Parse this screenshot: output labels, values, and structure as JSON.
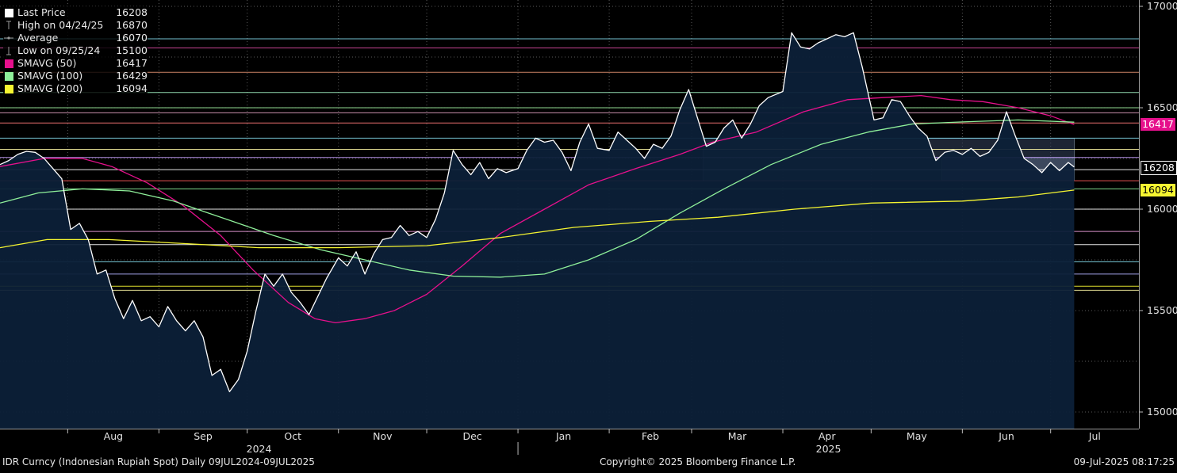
{
  "legend": [
    {
      "label": "Last Price",
      "value": "16208",
      "icon": "white-square",
      "color": "#ffffff"
    },
    {
      "label": "High on 04/24/25",
      "value": "16870",
      "icon": "high-marker-icon",
      "color": "#9a9a9a"
    },
    {
      "label": "Average",
      "value": "16070",
      "icon": "average-line-icon",
      "color": "#9a9a9a"
    },
    {
      "label": "Low on 09/25/24",
      "value": "15100",
      "icon": "low-marker-icon",
      "color": "#9a9a9a"
    },
    {
      "label": "SMAVG (50)",
      "value": "16417",
      "icon": "magenta-square",
      "color": "#e6108c"
    },
    {
      "label": "SMAVG (100)",
      "value": "16429",
      "icon": "green-square",
      "color": "#8ff09a"
    },
    {
      "label": "SMAVG (200)",
      "value": "16094",
      "icon": "yellow-square",
      "color": "#f5f531"
    }
  ],
  "tags": [
    {
      "value": "16417",
      "color": "#e6108c",
      "text_color": "#ffffff",
      "y_value": 16417
    },
    {
      "value": "16208",
      "color": "#000000",
      "text_color": "#ffffff",
      "y_value": 16208
    },
    {
      "value": "16094",
      "color": "#f5f531",
      "text_color": "#000000",
      "y_value": 16094
    }
  ],
  "footer": {
    "left": "IDR Curncy (Indonesian Rupiah Spot)  Daily 09JUL2024-09JUL2025",
    "center": "Copyright© 2025 Bloomberg Finance L.P.",
    "right": "09-Jul-2025 08:17:25"
  },
  "chart_data": {
    "type": "area",
    "ylim": [
      14920,
      17000
    ],
    "y_ticks": [
      17000,
      16500,
      16000,
      15500,
      15000
    ],
    "x_labels": [
      {
        "label": "Aug",
        "date": "2024-08-01"
      },
      {
        "label": "Sep",
        "date": "2024-09-01"
      },
      {
        "label": "Oct",
        "date": "2024-10-01"
      },
      {
        "label": "Nov",
        "date": "2024-11-01"
      },
      {
        "label": "Dec",
        "date": "2024-12-01"
      },
      {
        "label": "Jan",
        "date": "2025-01-01"
      },
      {
        "label": "Feb",
        "date": "2025-02-01"
      },
      {
        "label": "Mar",
        "date": "2025-03-01"
      },
      {
        "label": "Apr",
        "date": "2025-04-01"
      },
      {
        "label": "May",
        "date": "2025-05-01"
      },
      {
        "label": "Jun",
        "date": "2025-06-01"
      },
      {
        "label": "Jul",
        "date": "2025-07-01"
      }
    ],
    "year_labels": [
      {
        "label": "2024"
      },
      {
        "label": "2025"
      }
    ],
    "xlim_dates": [
      "2024-07-09",
      "2025-07-31"
    ],
    "grid": true,
    "legend_position": "top-left",
    "colors": {
      "price": "#ffffff",
      "fill": "#0c2038",
      "sma50": "#e6108c",
      "sma100": "#8ff09a",
      "sma200": "#f5f531"
    },
    "horizontal_lines": [
      {
        "y": 16840,
        "color": "#7fd6e6"
      },
      {
        "y": 16795,
        "color": "#d94aa0"
      },
      {
        "y": 16675,
        "color": "#e09070"
      },
      {
        "y": 16575,
        "color": "#9ff0c0"
      },
      {
        "y": 16500,
        "color": "#9ff0a0"
      },
      {
        "y": 16475,
        "color": "#e0a0c0"
      },
      {
        "y": 16425,
        "color": "#ff7a7a"
      },
      {
        "y": 16350,
        "color": "#7fd6e6"
      },
      {
        "y": 16295,
        "color": "#f5f0a0"
      },
      {
        "y": 16255,
        "color": "#c8a0ff"
      },
      {
        "y": 16195,
        "color": "#ffffff"
      },
      {
        "y": 16140,
        "color": "#ff5a5a"
      },
      {
        "y": 16100,
        "color": "#8ff09a"
      },
      {
        "y": 16000,
        "color": "#ffffff"
      },
      {
        "y": 15890,
        "color": "#f0a0e0"
      },
      {
        "y": 15825,
        "color": "#ffffff"
      },
      {
        "y": 15740,
        "color": "#7fd6e6"
      },
      {
        "y": 15680,
        "color": "#b0b0ff"
      },
      {
        "y": 15620,
        "color": "#f5f531"
      },
      {
        "y": 15600,
        "color": "#f5f0a0"
      }
    ],
    "series": [
      {
        "name": "Last Price",
        "points": [
          [
            "2024-07-09",
            16220
          ],
          [
            "2024-07-12",
            16240
          ],
          [
            "2024-07-15",
            16270
          ],
          [
            "2024-07-18",
            16285
          ],
          [
            "2024-07-21",
            16280
          ],
          [
            "2024-07-24",
            16250
          ],
          [
            "2024-07-27",
            16200
          ],
          [
            "2024-07-30",
            16150
          ],
          [
            "2024-08-02",
            15900
          ],
          [
            "2024-08-05",
            15930
          ],
          [
            "2024-08-08",
            15850
          ],
          [
            "2024-08-11",
            15680
          ],
          [
            "2024-08-14",
            15700
          ],
          [
            "2024-08-17",
            15560
          ],
          [
            "2024-08-20",
            15460
          ],
          [
            "2024-08-23",
            15550
          ],
          [
            "2024-08-26",
            15450
          ],
          [
            "2024-08-29",
            15470
          ],
          [
            "2024-09-01",
            15420
          ],
          [
            "2024-09-04",
            15520
          ],
          [
            "2024-09-07",
            15450
          ],
          [
            "2024-09-10",
            15400
          ],
          [
            "2024-09-13",
            15450
          ],
          [
            "2024-09-16",
            15370
          ],
          [
            "2024-09-19",
            15180
          ],
          [
            "2024-09-22",
            15210
          ],
          [
            "2024-09-25",
            15100
          ],
          [
            "2024-09-28",
            15160
          ],
          [
            "2024-10-01",
            15300
          ],
          [
            "2024-10-04",
            15500
          ],
          [
            "2024-10-07",
            15680
          ],
          [
            "2024-10-10",
            15620
          ],
          [
            "2024-10-13",
            15680
          ],
          [
            "2024-10-16",
            15590
          ],
          [
            "2024-10-19",
            15540
          ],
          [
            "2024-10-22",
            15480
          ],
          [
            "2024-10-25",
            15570
          ],
          [
            "2024-10-28",
            15660
          ],
          [
            "2024-11-01",
            15760
          ],
          [
            "2024-11-04",
            15720
          ],
          [
            "2024-11-07",
            15790
          ],
          [
            "2024-11-10",
            15680
          ],
          [
            "2024-11-13",
            15780
          ],
          [
            "2024-11-16",
            15850
          ],
          [
            "2024-11-19",
            15860
          ],
          [
            "2024-11-22",
            15920
          ],
          [
            "2024-11-25",
            15870
          ],
          [
            "2024-11-28",
            15890
          ],
          [
            "2024-12-01",
            15860
          ],
          [
            "2024-12-04",
            15950
          ],
          [
            "2024-12-07",
            16080
          ],
          [
            "2024-12-10",
            16290
          ],
          [
            "2024-12-13",
            16220
          ],
          [
            "2024-12-16",
            16170
          ],
          [
            "2024-12-19",
            16230
          ],
          [
            "2024-12-22",
            16150
          ],
          [
            "2024-12-25",
            16200
          ],
          [
            "2024-12-28",
            16180
          ],
          [
            "2025-01-01",
            16200
          ],
          [
            "2025-01-04",
            16290
          ],
          [
            "2025-01-07",
            16350
          ],
          [
            "2025-01-10",
            16330
          ],
          [
            "2025-01-13",
            16340
          ],
          [
            "2025-01-16",
            16280
          ],
          [
            "2025-01-19",
            16190
          ],
          [
            "2025-01-22",
            16330
          ],
          [
            "2025-01-25",
            16420
          ],
          [
            "2025-01-28",
            16300
          ],
          [
            "2025-02-01",
            16290
          ],
          [
            "2025-02-04",
            16380
          ],
          [
            "2025-02-07",
            16340
          ],
          [
            "2025-02-10",
            16300
          ],
          [
            "2025-02-13",
            16250
          ],
          [
            "2025-02-16",
            16320
          ],
          [
            "2025-02-19",
            16300
          ],
          [
            "2025-02-22",
            16360
          ],
          [
            "2025-02-25",
            16490
          ],
          [
            "2025-02-28",
            16590
          ],
          [
            "2025-03-03",
            16450
          ],
          [
            "2025-03-06",
            16310
          ],
          [
            "2025-03-09",
            16330
          ],
          [
            "2025-03-12",
            16400
          ],
          [
            "2025-03-15",
            16440
          ],
          [
            "2025-03-18",
            16350
          ],
          [
            "2025-03-21",
            16420
          ],
          [
            "2025-03-24",
            16510
          ],
          [
            "2025-03-27",
            16550
          ],
          [
            "2025-04-01",
            16580
          ],
          [
            "2025-04-04",
            16870
          ],
          [
            "2025-04-07",
            16800
          ],
          [
            "2025-04-10",
            16790
          ],
          [
            "2025-04-13",
            16820
          ],
          [
            "2025-04-16",
            16840
          ],
          [
            "2025-04-19",
            16860
          ],
          [
            "2025-04-22",
            16850
          ],
          [
            "2025-04-25",
            16870
          ],
          [
            "2025-04-28",
            16700
          ],
          [
            "2025-05-02",
            16440
          ],
          [
            "2025-05-05",
            16450
          ],
          [
            "2025-05-08",
            16540
          ],
          [
            "2025-05-11",
            16530
          ],
          [
            "2025-05-14",
            16460
          ],
          [
            "2025-05-17",
            16400
          ],
          [
            "2025-05-20",
            16360
          ],
          [
            "2025-05-23",
            16240
          ],
          [
            "2025-05-26",
            16280
          ],
          [
            "2025-05-29",
            16290
          ],
          [
            "2025-06-01",
            16270
          ],
          [
            "2025-06-04",
            16300
          ],
          [
            "2025-06-07",
            16260
          ],
          [
            "2025-06-10",
            16280
          ],
          [
            "2025-06-13",
            16340
          ],
          [
            "2025-06-16",
            16480
          ],
          [
            "2025-06-19",
            16360
          ],
          [
            "2025-06-22",
            16250
          ],
          [
            "2025-06-25",
            16220
          ],
          [
            "2025-06-28",
            16180
          ],
          [
            "2025-07-01",
            16230
          ],
          [
            "2025-07-04",
            16190
          ],
          [
            "2025-07-07",
            16230
          ],
          [
            "2025-07-09",
            16208
          ]
        ]
      },
      {
        "name": "SMAVG (50)",
        "points": [
          [
            "2024-07-09",
            16210
          ],
          [
            "2024-07-24",
            16250
          ],
          [
            "2024-08-06",
            16250
          ],
          [
            "2024-08-16",
            16210
          ],
          [
            "2024-08-28",
            16130
          ],
          [
            "2024-09-09",
            16020
          ],
          [
            "2024-09-22",
            15870
          ],
          [
            "2024-10-03",
            15700
          ],
          [
            "2024-10-15",
            15540
          ],
          [
            "2024-10-24",
            15460
          ],
          [
            "2024-10-31",
            15440
          ],
          [
            "2024-11-10",
            15460
          ],
          [
            "2024-11-20",
            15500
          ],
          [
            "2024-12-01",
            15580
          ],
          [
            "2024-12-13",
            15720
          ],
          [
            "2024-12-26",
            15880
          ],
          [
            "2025-01-10",
            16000
          ],
          [
            "2025-01-25",
            16120
          ],
          [
            "2025-02-10",
            16200
          ],
          [
            "2025-02-25",
            16270
          ],
          [
            "2025-03-08",
            16330
          ],
          [
            "2025-03-23",
            16380
          ],
          [
            "2025-04-08",
            16480
          ],
          [
            "2025-04-23",
            16540
          ],
          [
            "2025-05-05",
            16550
          ],
          [
            "2025-05-18",
            16560
          ],
          [
            "2025-05-28",
            16540
          ],
          [
            "2025-06-08",
            16530
          ],
          [
            "2025-06-20",
            16500
          ],
          [
            "2025-07-01",
            16460
          ],
          [
            "2025-07-09",
            16417
          ]
        ]
      },
      {
        "name": "SMAVG (100)",
        "points": [
          [
            "2024-07-09",
            16030
          ],
          [
            "2024-07-22",
            16080
          ],
          [
            "2024-08-06",
            16100
          ],
          [
            "2024-08-22",
            16090
          ],
          [
            "2024-09-06",
            16040
          ],
          [
            "2024-09-24",
            15950
          ],
          [
            "2024-10-10",
            15870
          ],
          [
            "2024-10-26",
            15800
          ],
          [
            "2024-11-10",
            15750
          ],
          [
            "2024-11-25",
            15700
          ],
          [
            "2024-12-10",
            15670
          ],
          [
            "2024-12-26",
            15665
          ],
          [
            "2025-01-10",
            15680
          ],
          [
            "2025-01-25",
            15750
          ],
          [
            "2025-02-10",
            15850
          ],
          [
            "2025-02-25",
            15980
          ],
          [
            "2025-03-12",
            16100
          ],
          [
            "2025-03-28",
            16220
          ],
          [
            "2025-04-14",
            16320
          ],
          [
            "2025-04-30",
            16380
          ],
          [
            "2025-05-15",
            16420
          ],
          [
            "2025-06-01",
            16430
          ],
          [
            "2025-06-20",
            16440
          ],
          [
            "2025-07-09",
            16429
          ]
        ]
      },
      {
        "name": "SMAVG (200)",
        "points": [
          [
            "2024-07-09",
            15810
          ],
          [
            "2024-07-25",
            15850
          ],
          [
            "2024-08-15",
            15850
          ],
          [
            "2024-09-10",
            15830
          ],
          [
            "2024-10-05",
            15810
          ],
          [
            "2024-11-01",
            15810
          ],
          [
            "2024-12-01",
            15820
          ],
          [
            "2024-12-26",
            15860
          ],
          [
            "2025-01-20",
            15910
          ],
          [
            "2025-02-15",
            15940
          ],
          [
            "2025-03-10",
            15960
          ],
          [
            "2025-04-05",
            16000
          ],
          [
            "2025-05-01",
            16030
          ],
          [
            "2025-06-01",
            16040
          ],
          [
            "2025-06-20",
            16060
          ],
          [
            "2025-07-09",
            16094
          ]
        ]
      }
    ],
    "highlight_boxes": [
      {
        "x_from": "2025-03-05",
        "x_to": "2025-07-09",
        "y_from": 16140,
        "y_to": 16350,
        "color": "#34445e"
      },
      {
        "x_from": "2025-05-25",
        "x_to": "2025-07-09",
        "y_from": 16140,
        "y_to": 16255,
        "color": "#556680"
      }
    ]
  }
}
